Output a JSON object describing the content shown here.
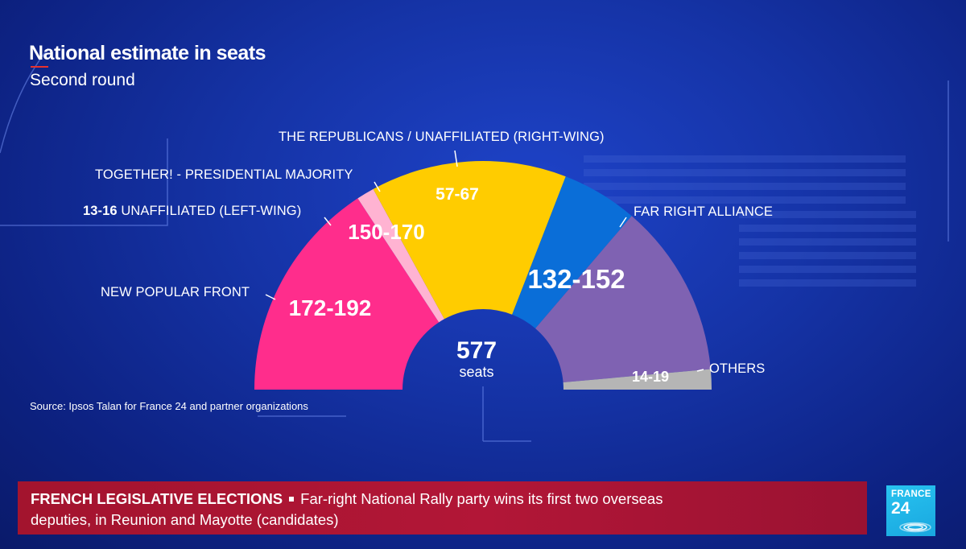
{
  "header": {
    "title": "National estimate in seats",
    "subtitle": "Second round"
  },
  "source": "Source: Ipsos Talan for France 24 and partner organizations",
  "chart_data": {
    "type": "pie",
    "title": "National estimate in seats",
    "subtitle": "Second round",
    "total": {
      "value": "577",
      "unit": "seats"
    },
    "seat_total": 577,
    "series": [
      {
        "name": "NEW POPULAR FRONT",
        "range": "172-192",
        "low": 172,
        "high": 192,
        "color": "#ff2d8c"
      },
      {
        "name": "UNAFFILIATED (LEFT-WING)",
        "range": "13-16",
        "low": 13,
        "high": 16,
        "color": "#ffb3d2"
      },
      {
        "name": "TOGETHER! - PRESIDENTIAL MAJORITY",
        "range": "150-170",
        "low": 150,
        "high": 170,
        "color": "#ffcc00"
      },
      {
        "name": "THE REPUBLICANS / UNAFFILIATED (RIGHT-WING)",
        "range": "57-67",
        "low": 57,
        "high": 67,
        "color": "#0a6ed8"
      },
      {
        "name": "FAR RIGHT ALLIANCE",
        "range": "132-152",
        "low": 132,
        "high": 152,
        "color": "#7f62b2"
      },
      {
        "name": "OTHERS",
        "range": "14-19",
        "low": 14,
        "high": 19,
        "color": "#b5b5b5"
      }
    ]
  },
  "labels": {
    "new_popular_front": "NEW POPULAR FRONT",
    "left_wing_range": "13-16",
    "left_wing_name": "UNAFFILIATED (LEFT-WING)",
    "together": "TOGETHER! - PRESIDENTIAL MAJORITY",
    "republicans": "THE REPUBLICANS / UNAFFILIATED (RIGHT-WING)",
    "far_right": "FAR RIGHT ALLIANCE",
    "others": "OTHERS"
  },
  "ticker": {
    "headline": "FRENCH LEGISLATIVE ELECTIONS",
    "text_line1": "Far-right National Rally party wins its first two overseas",
    "text_line2": "deputies, in Reunion and Mayotte (candidates)"
  },
  "logo": {
    "top": "FRANCE",
    "bottom": "24"
  }
}
